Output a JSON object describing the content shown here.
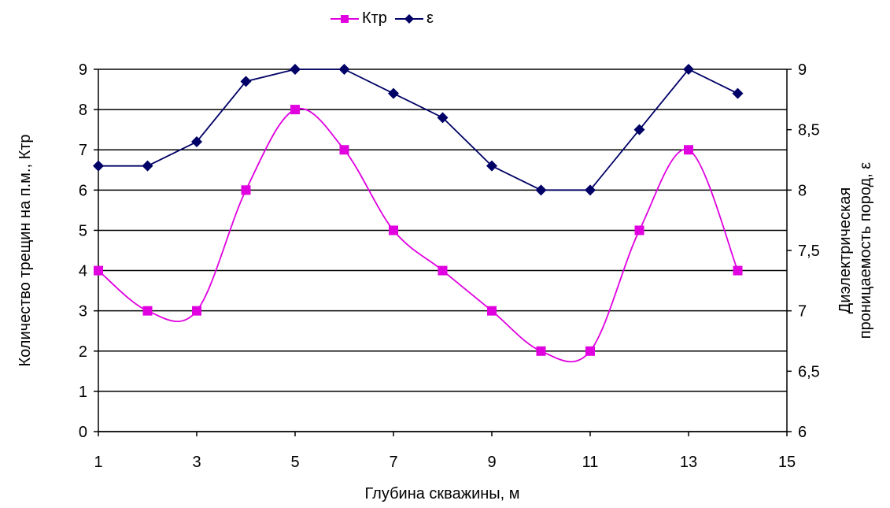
{
  "chart_data": {
    "type": "line",
    "x": [
      1,
      2,
      3,
      4,
      5,
      6,
      7,
      8,
      9,
      10,
      11,
      12,
      13,
      14
    ],
    "xlabel": "Глубина скважины, м",
    "xlim": [
      1,
      15
    ],
    "xticks": [
      "1",
      "3",
      "5",
      "7",
      "9",
      "11",
      "13",
      "15"
    ],
    "ylabel": "Количество трещин на п.м., Ктр",
    "ylim": [
      0,
      9
    ],
    "yticks": [
      "0",
      "1",
      "2",
      "3",
      "4",
      "5",
      "6",
      "7",
      "8",
      "9"
    ],
    "y2label_line1": "Диэлектрическая",
    "y2label_line2": "проницаемость пород, ε",
    "y2lim": [
      6,
      9
    ],
    "y2ticks": [
      "6",
      "6,5",
      "7",
      "7,5",
      "8",
      "8,5",
      "9"
    ],
    "grid": true,
    "legend_position": "top",
    "series": [
      {
        "name": "Ктр",
        "axis": "left",
        "color": "#e000e0",
        "marker": "square",
        "smooth": true,
        "values": [
          4,
          3,
          3,
          6,
          8,
          7,
          5,
          4,
          3,
          2,
          2,
          5,
          7,
          4
        ]
      },
      {
        "name": "ε",
        "axis": "right",
        "color": "#000066",
        "marker": "diamond",
        "smooth": false,
        "values": [
          8.2,
          8.2,
          8.4,
          8.9,
          9.0,
          9.0,
          8.8,
          8.6,
          8.2,
          8.0,
          8.0,
          8.5,
          9.0,
          8.8
        ]
      }
    ]
  }
}
